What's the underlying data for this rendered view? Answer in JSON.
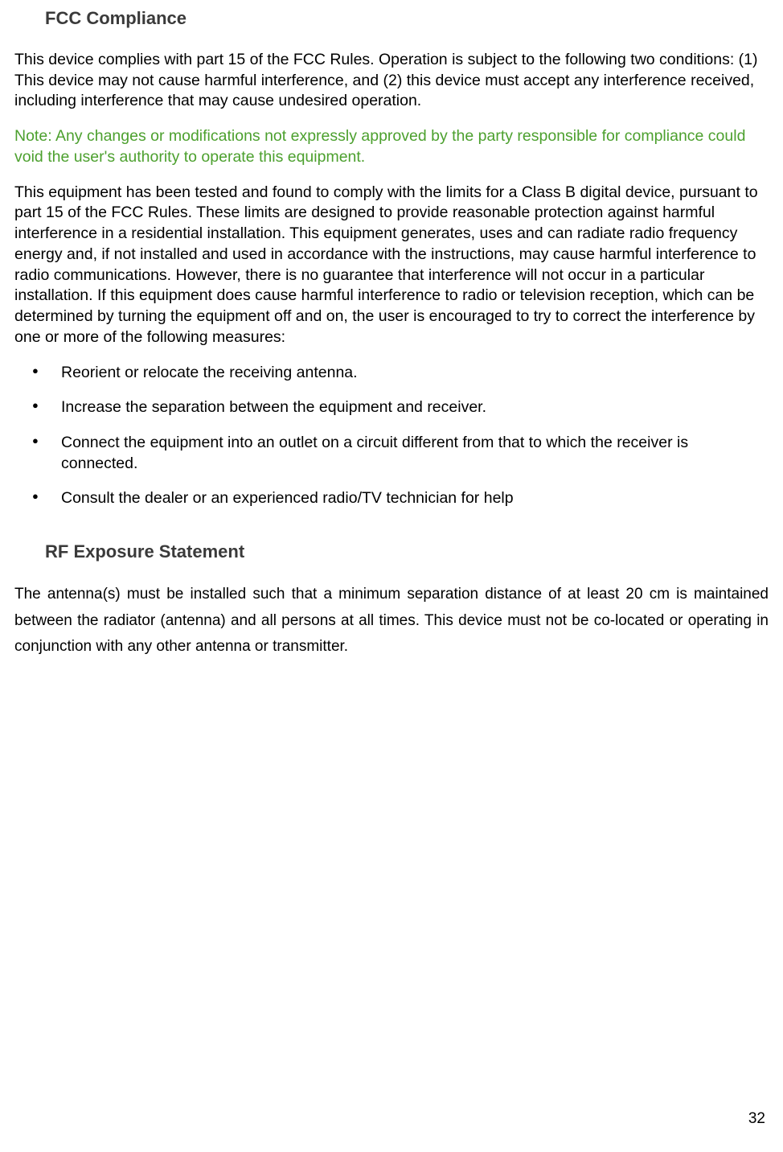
{
  "section1": {
    "title": "FCC Compliance",
    "para1": "This device complies with part 15 of the FCC Rules. Operation is subject to the following two conditions: (1) This device may not cause harmful interference, and (2) this device must accept any interference received, including interference that may cause undesired operation.",
    "note": "Note: Any changes or modifications not expressly approved by the party responsible for compliance could void the user's authority to operate this equipment.",
    "para2": "This equipment has been tested and found to comply with the limits for a Class B digital device, pursuant to part 15 of the FCC Rules. These limits are designed to provide reasonable protection against harmful interference in a residential installation. This equipment generates, uses and can radiate radio frequency energy and, if not installed and used in accordance with the instructions, may cause harmful interference to radio communications. However, there is no guarantee that interference will not occur in a particular installation. If this equipment does cause harmful interference to radio or television reception, which can be determined by turning the equipment off and on, the user is encouraged to try to correct the interference by one or more of the following measures:",
    "bullets": [
      "Reorient or relocate the receiving antenna.",
      "Increase the separation between the equipment and receiver.",
      "Connect the equipment into an outlet on a circuit different from that to which the receiver is connected.",
      "Consult the dealer or an experienced radio/TV technician for help"
    ]
  },
  "section2": {
    "title": "RF Exposure Statement",
    "para1": "The antenna(s) must be installed such that a minimum separation distance of at least 20 cm is maintained between the radiator (antenna) and all persons at all times. This device must not be co-located or operating in conjunction with any other antenna or transmitter."
  },
  "page_number": "32",
  "colors": {
    "heading": "#3a3a3a",
    "body_text": "#000000",
    "note_text": "#4ca02e",
    "background": "#ffffff"
  },
  "typography": {
    "heading_fontsize": 22,
    "body_fontsize": 19.5,
    "rf_body_fontsize": 19,
    "body_lineheight": 1.32,
    "rf_lineheight": 1.7
  }
}
